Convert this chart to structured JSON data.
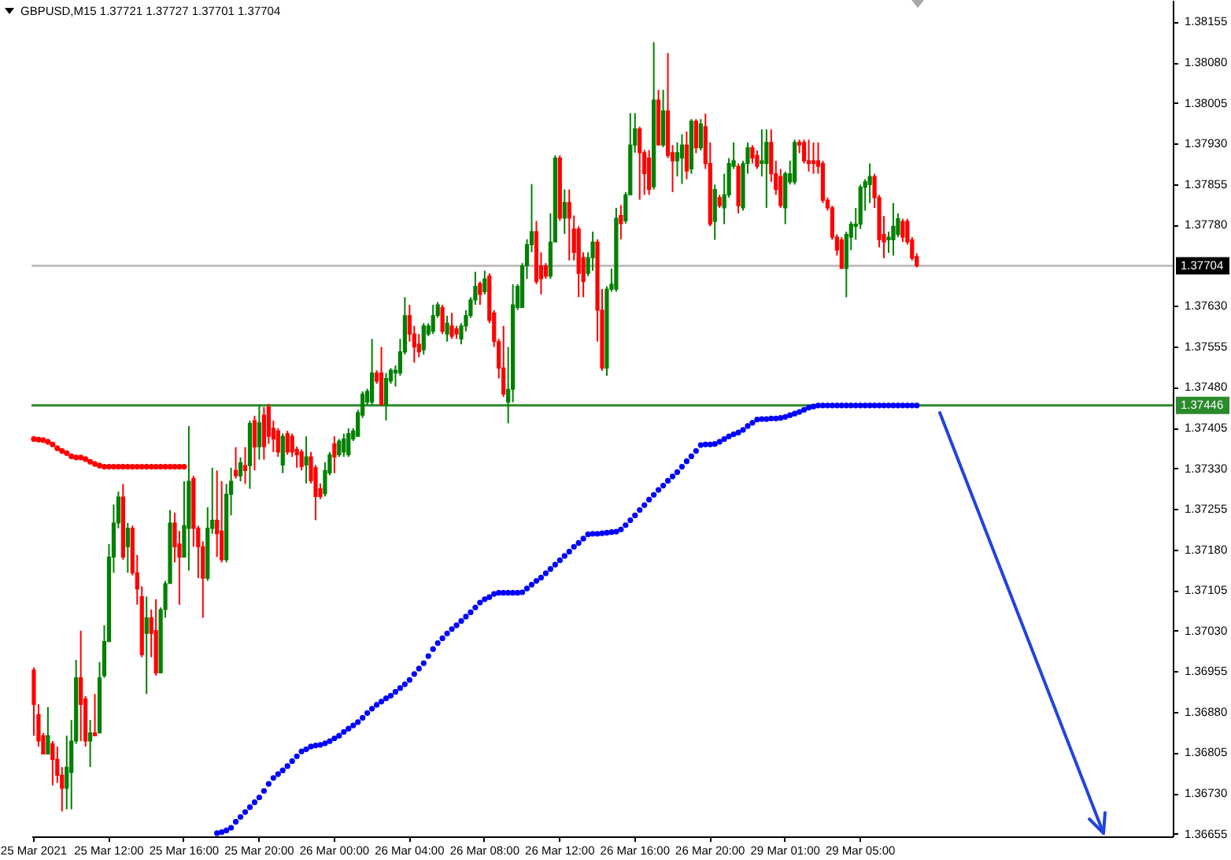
{
  "chart_data": {
    "type": "candlestick",
    "title": "GBPUSD,M15  1.37721 1.37727 1.37701 1.37704",
    "categories": [
      "25 Mar 2021",
      null,
      null,
      null,
      null,
      null,
      null,
      null,
      null,
      null,
      null,
      null,
      null,
      null,
      null,
      null,
      "25 Mar 12:00",
      null,
      null,
      null,
      null,
      null,
      null,
      null,
      null,
      null,
      null,
      null,
      null,
      null,
      null,
      null,
      "25 Mar 16:00",
      null,
      null,
      null,
      null,
      null,
      null,
      null,
      null,
      null,
      null,
      null,
      null,
      null,
      null,
      null,
      "25 Mar 20:00",
      null,
      null,
      null,
      null,
      null,
      null,
      null,
      null,
      null,
      null,
      null,
      null,
      null,
      null,
      null,
      "26 Mar 00:00",
      null,
      null,
      null,
      null,
      null,
      null,
      null,
      null,
      null,
      null,
      null,
      null,
      null,
      null,
      null,
      "26 Mar 04:00",
      null,
      null,
      null,
      null,
      null,
      null,
      null,
      null,
      null,
      null,
      null,
      null,
      null,
      null,
      null,
      "26 Mar 08:00",
      null,
      null,
      null,
      null,
      null,
      null,
      null,
      null,
      null,
      null,
      null,
      null,
      null,
      null,
      null,
      "26 Mar 12:00",
      null,
      null,
      null,
      null,
      null,
      null,
      null,
      null,
      null,
      null,
      null,
      null,
      null,
      null,
      null,
      "26 Mar 16:00",
      null,
      null,
      null,
      null,
      null,
      null,
      null,
      null,
      null,
      null,
      null,
      null,
      null,
      null,
      null,
      "26 Mar 20:00",
      null,
      null,
      null,
      null,
      null,
      null,
      null,
      null,
      null,
      null,
      null,
      null,
      null,
      null,
      null,
      "29 Mar 01:00",
      null,
      null,
      null,
      null,
      null,
      null,
      null,
      null,
      null,
      null,
      null,
      null,
      null,
      null,
      null,
      "29 Mar 05:00",
      null,
      null,
      null,
      null,
      null,
      null,
      null,
      null,
      null,
      null,
      null,
      null,
      null,
      null,
      null,
      null,
      null,
      null,
      null,
      null,
      null,
      null,
      null,
      null,
      null,
      null,
      null,
      null,
      null,
      null,
      null,
      null,
      null,
      null,
      null,
      null,
      null,
      null,
      null,
      null,
      null,
      null,
      null,
      null,
      null,
      null,
      null,
      null,
      null,
      null,
      null,
      null,
      null,
      null,
      null,
      null,
      null,
      null,
      null,
      null,
      null,
      null,
      null,
      null,
      null,
      null
    ],
    "ohlc": [
      [
        1.36957,
        1.36962,
        1.36836,
        1.36894
      ],
      [
        1.36875,
        1.36894,
        1.36816,
        1.36826
      ],
      [
        1.36836,
        1.36841,
        1.36802,
        1.36802
      ],
      [
        1.36802,
        1.36889,
        1.36802,
        1.36836
      ],
      [
        1.36821,
        1.36826,
        1.36744,
        1.36792
      ],
      [
        1.36792,
        1.36816,
        1.36749,
        1.36763
      ],
      [
        1.36763,
        1.36778,
        1.36696,
        1.36739
      ],
      [
        1.36739,
        1.36836,
        1.367,
        1.36778
      ],
      [
        1.36768,
        1.36865,
        1.367,
        1.36826
      ],
      [
        1.36826,
        1.36976,
        1.36821,
        1.36943
      ],
      [
        1.36943,
        1.3703,
        1.36826,
        1.36894
      ],
      [
        1.36904,
        1.36909,
        1.36816,
        1.36826
      ],
      [
        1.36826,
        1.36865,
        1.36778,
        1.36841
      ],
      [
        1.36841,
        1.36913,
        1.36836,
        1.36836
      ],
      [
        1.36841,
        1.36972,
        1.36841,
        1.36943
      ],
      [
        1.36947,
        1.3704,
        1.36943,
        1.3701
      ],
      [
        1.3701,
        1.3719,
        1.3701,
        1.37166
      ],
      [
        1.37166,
        1.37263,
        1.37137,
        1.37229
      ],
      [
        1.37229,
        1.37287,
        1.37219,
        1.37277
      ],
      [
        1.37277,
        1.37301,
        1.37161,
        1.37166
      ],
      [
        1.37185,
        1.37229,
        1.37137,
        1.37219
      ],
      [
        1.37219,
        1.37224,
        1.37132,
        1.37137
      ],
      [
        1.37137,
        1.3717,
        1.37078,
        1.37107
      ],
      [
        1.37093,
        1.37112,
        1.36981,
        1.36986
      ],
      [
        1.37025,
        1.37093,
        1.36913,
        1.37054
      ],
      [
        1.37054,
        1.37069,
        1.36981,
        1.37025
      ],
      [
        1.3703,
        1.37088,
        1.36947,
        1.36952
      ],
      [
        1.36952,
        1.37073,
        1.36952,
        1.37069
      ],
      [
        1.37069,
        1.37122,
        1.37054,
        1.37117
      ],
      [
        1.37117,
        1.37253,
        1.37117,
        1.37229
      ],
      [
        1.37229,
        1.37248,
        1.37156,
        1.37185
      ],
      [
        1.3719,
        1.37214,
        1.37078,
        1.37166
      ],
      [
        1.37166,
        1.37306,
        1.37166,
        1.37224
      ],
      [
        1.37219,
        1.37408,
        1.37141,
        1.37306
      ],
      [
        1.37311,
        1.37316,
        1.37185,
        1.37219
      ],
      [
        1.37219,
        1.37224,
        1.37127,
        1.37185
      ],
      [
        1.37185,
        1.37195,
        1.37054,
        1.37127
      ],
      [
        1.37127,
        1.37258,
        1.37122,
        1.37219
      ],
      [
        1.37219,
        1.37331,
        1.37209,
        1.37234
      ],
      [
        1.37234,
        1.37326,
        1.37166,
        1.37209
      ],
      [
        1.37214,
        1.37306,
        1.37156,
        1.37161
      ],
      [
        1.37161,
        1.37301,
        1.37156,
        1.37282
      ],
      [
        1.37282,
        1.37331,
        1.37243,
        1.37306
      ],
      [
        1.37326,
        1.37369,
        1.37311,
        1.37316
      ],
      [
        1.37316,
        1.3735,
        1.37306,
        1.3734
      ],
      [
        1.37335,
        1.37369,
        1.37301,
        1.37326
      ],
      [
        1.37335,
        1.37418,
        1.37292,
        1.37413
      ],
      [
        1.37418,
        1.37427,
        1.37326,
        1.37369
      ],
      [
        1.3737,
        1.37447,
        1.37346,
        1.37414
      ],
      [
        1.37428,
        1.37443,
        1.37346,
        1.3737
      ],
      [
        1.37443,
        1.37449,
        1.37375,
        1.37389
      ],
      [
        1.37404,
        1.37418,
        1.3736,
        1.37384
      ],
      [
        1.37399,
        1.37404,
        1.37351,
        1.3736
      ],
      [
        1.37336,
        1.37394,
        1.37321,
        1.37389
      ],
      [
        1.37394,
        1.37399,
        1.37355,
        1.3736
      ],
      [
        1.37389,
        1.37394,
        1.37351,
        1.3736
      ],
      [
        1.37365,
        1.3737,
        1.37331,
        1.37355
      ],
      [
        1.3736,
        1.37365,
        1.37326,
        1.37333
      ],
      [
        1.37336,
        1.37389,
        1.37302,
        1.37351
      ],
      [
        1.37351,
        1.3736,
        1.37302,
        1.37307
      ],
      [
        1.37331,
        1.37336,
        1.37234,
        1.37278
      ],
      [
        1.37292,
        1.37302,
        1.37273,
        1.37278
      ],
      [
        1.37283,
        1.37341,
        1.37278,
        1.37326
      ],
      [
        1.37321,
        1.3736,
        1.37317,
        1.37355
      ],
      [
        1.37375,
        1.37389,
        1.37321,
        1.37351
      ],
      [
        1.37355,
        1.37384,
        1.37351,
        1.3738
      ],
      [
        1.3736,
        1.37394,
        1.37351,
        1.37384
      ],
      [
        1.37355,
        1.37404,
        1.37351,
        1.37394
      ],
      [
        1.37384,
        1.37404,
        1.3738,
        1.37399
      ],
      [
        1.37389,
        1.37438,
        1.37389,
        1.37433
      ],
      [
        1.37428,
        1.37472,
        1.37423,
        1.37467
      ],
      [
        1.37452,
        1.37477,
        1.37447,
        1.37472
      ],
      [
        1.37452,
        1.37569,
        1.37447,
        1.37506
      ],
      [
        1.37506,
        1.37511,
        1.37486,
        1.37491
      ],
      [
        1.37506,
        1.37554,
        1.37447,
        1.37447
      ],
      [
        1.37447,
        1.37506,
        1.37418,
        1.37496
      ],
      [
        1.37491,
        1.37515,
        1.37486,
        1.37511
      ],
      [
        1.37506,
        1.3752,
        1.37481,
        1.37511
      ],
      [
        1.37506,
        1.37569,
        1.37501,
        1.37545
      ],
      [
        1.37545,
        1.37646,
        1.3754,
        1.37612
      ],
      [
        1.37612,
        1.37632,
        1.37564,
        1.37578
      ],
      [
        1.37578,
        1.37593,
        1.37525,
        1.37554
      ],
      [
        1.37559,
        1.37578,
        1.37535,
        1.37545
      ],
      [
        1.37549,
        1.37598,
        1.3754,
        1.37593
      ],
      [
        1.37578,
        1.37598,
        1.37574,
        1.37593
      ],
      [
        1.37583,
        1.37632,
        1.37578,
        1.37612
      ],
      [
        1.37612,
        1.37637,
        1.37608,
        1.37632
      ],
      [
        1.37627,
        1.37632,
        1.37578,
        1.37583
      ],
      [
        1.37578,
        1.37612,
        1.37564,
        1.37598
      ],
      [
        1.37593,
        1.37617,
        1.37569,
        1.37574
      ],
      [
        1.37588,
        1.37593,
        1.37569,
        1.37578
      ],
      [
        1.37569,
        1.37598,
        1.37559,
        1.37593
      ],
      [
        1.37593,
        1.37622,
        1.37583,
        1.37612
      ],
      [
        1.37612,
        1.37646,
        1.37608,
        1.37641
      ],
      [
        1.37641,
        1.37693,
        1.37632,
        1.37666
      ],
      [
        1.37671,
        1.37675,
        1.37632,
        1.37651
      ],
      [
        1.37656,
        1.37695,
        1.37651,
        1.3768
      ],
      [
        1.37685,
        1.3769,
        1.37598,
        1.37603
      ],
      [
        1.37617,
        1.37622,
        1.37554,
        1.37564
      ],
      [
        1.37564,
        1.37569,
        1.37496,
        1.37515
      ],
      [
        1.37515,
        1.37593,
        1.37462,
        1.37467
      ],
      [
        1.37452,
        1.37554,
        1.37413,
        1.37476
      ],
      [
        1.37476,
        1.3767,
        1.37452,
        1.37632
      ],
      [
        1.37627,
        1.3767,
        1.37622,
        1.37666
      ],
      [
        1.37627,
        1.37709,
        1.37627,
        1.37704
      ],
      [
        1.37704,
        1.37753,
        1.3768,
        1.37743
      ],
      [
        1.37743,
        1.37855,
        1.37729,
        1.37767
      ],
      [
        1.37767,
        1.37787,
        1.3767,
        1.37675
      ],
      [
        1.37704,
        1.37729,
        1.37651,
        1.3768
      ],
      [
        1.37704,
        1.37709,
        1.3768,
        1.37685
      ],
      [
        1.37685,
        1.37801,
        1.3768,
        1.37748
      ],
      [
        1.37748,
        1.37908,
        1.37748,
        1.37903
      ],
      [
        1.37903,
        1.37908,
        1.37787,
        1.37792
      ],
      [
        1.37792,
        1.37845,
        1.37763,
        1.37821
      ],
      [
        1.37821,
        1.37845,
        1.37714,
        1.37792
      ],
      [
        1.37772,
        1.37797,
        1.37714,
        1.37729
      ],
      [
        1.37772,
        1.37777,
        1.37646,
        1.3769
      ],
      [
        1.37719,
        1.37729,
        1.37646,
        1.37675
      ],
      [
        1.3769,
        1.37729,
        1.37685,
        1.37719
      ],
      [
        1.37719,
        1.37767,
        1.37695,
        1.37748
      ],
      [
        1.37748,
        1.37753,
        1.37564,
        1.37622
      ],
      [
        1.37622,
        1.37661,
        1.3751,
        1.37515
      ],
      [
        1.37515,
        1.37666,
        1.37501,
        1.37661
      ],
      [
        1.37661,
        1.37699,
        1.37656,
        1.3767
      ],
      [
        1.37661,
        1.37811,
        1.37656,
        1.37792
      ],
      [
        1.37797,
        1.37816,
        1.37753,
        1.37782
      ],
      [
        1.37787,
        1.3784,
        1.37782,
        1.37835
      ],
      [
        1.37835,
        1.37986,
        1.37835,
        1.37927
      ],
      [
        1.37927,
        1.37986,
        1.37913,
        1.37957
      ],
      [
        1.37957,
        1.37961,
        1.37826,
        1.37913
      ],
      [
        1.37913,
        1.37918,
        1.37835,
        1.37874
      ],
      [
        1.37903,
        1.37918,
        1.37835,
        1.37845
      ],
      [
        1.3785,
        1.38117,
        1.37845,
        1.3801
      ],
      [
        1.3801,
        1.38029,
        1.37927,
        1.37927
      ],
      [
        1.37927,
        1.38029,
        1.37923,
        1.3799
      ],
      [
        1.3799,
        1.38097,
        1.37903,
        1.37908
      ],
      [
        1.37913,
        1.37927,
        1.3784,
        1.37898
      ],
      [
        1.37898,
        1.37932,
        1.37869,
        1.37913
      ],
      [
        1.37903,
        1.37947,
        1.37855,
        1.37927
      ],
      [
        1.37927,
        1.37952,
        1.37864,
        1.37879
      ],
      [
        1.37883,
        1.37975,
        1.37874,
        1.37971
      ],
      [
        1.37971,
        1.37975,
        1.37912,
        1.37922
      ],
      [
        1.37922,
        1.37975,
        1.37917,
        1.37966
      ],
      [
        1.37961,
        1.37985,
        1.37883,
        1.37893
      ],
      [
        1.37893,
        1.37932,
        1.37777,
        1.37781
      ],
      [
        1.37786,
        1.37854,
        1.37752,
        1.37845
      ],
      [
        1.3783,
        1.37835,
        1.37811,
        1.37815
      ],
      [
        1.37811,
        1.37874,
        1.37781,
        1.37835
      ],
      [
        1.37835,
        1.37903,
        1.3783,
        1.37893
      ],
      [
        1.37888,
        1.37932,
        1.37883,
        1.37898
      ],
      [
        1.37888,
        1.37893,
        1.37801,
        1.37815
      ],
      [
        1.37811,
        1.37898,
        1.37806,
        1.37893
      ],
      [
        1.37893,
        1.37932,
        1.37874,
        1.37922
      ],
      [
        1.37922,
        1.37927,
        1.37893,
        1.37903
      ],
      [
        1.37908,
        1.37917,
        1.37883,
        1.37888
      ],
      [
        1.37893,
        1.37956,
        1.37869,
        1.37898
      ],
      [
        1.37893,
        1.37956,
        1.37811,
        1.37932
      ],
      [
        1.37932,
        1.37956,
        1.37859,
        1.37874
      ],
      [
        1.37874,
        1.37898,
        1.37835,
        1.37845
      ],
      [
        1.37869,
        1.37883,
        1.37811,
        1.37815
      ],
      [
        1.37811,
        1.37878,
        1.37781,
        1.37874
      ],
      [
        1.37859,
        1.37898,
        1.37854,
        1.37874
      ],
      [
        1.37859,
        1.37937,
        1.37854,
        1.37932
      ],
      [
        1.37932,
        1.37937,
        1.37912,
        1.37927
      ],
      [
        1.37932,
        1.37937,
        1.37893,
        1.37898
      ],
      [
        1.37898,
        1.37937,
        1.37878,
        1.37893
      ],
      [
        1.37898,
        1.37932,
        1.37874,
        1.37893
      ],
      [
        1.37898,
        1.37932,
        1.37874,
        1.37888
      ],
      [
        1.37893,
        1.37898,
        1.3782,
        1.37825
      ],
      [
        1.37825,
        1.3783,
        1.37806,
        1.37811
      ],
      [
        1.37811,
        1.37815,
        1.37752,
        1.37757
      ],
      [
        1.37757,
        1.37762,
        1.37723,
        1.37733
      ],
      [
        1.37752,
        1.37757,
        1.37699,
        1.37699
      ],
      [
        1.37699,
        1.37767,
        1.37646,
        1.37762
      ],
      [
        1.37757,
        1.37786,
        1.37733,
        1.37781
      ],
      [
        1.37777,
        1.37811,
        1.37752,
        1.37781
      ],
      [
        1.37781,
        1.37854,
        1.37772,
        1.37849
      ],
      [
        1.37849,
        1.37864,
        1.37806,
        1.37859
      ],
      [
        1.37854,
        1.37893,
        1.3782,
        1.37869
      ],
      [
        1.37869,
        1.37874,
        1.37811,
        1.3783
      ],
      [
        1.3783,
        1.37835,
        1.37738,
        1.37752
      ],
      [
        1.37762,
        1.37796,
        1.37718,
        1.37748
      ],
      [
        1.37752,
        1.37767,
        1.37728,
        1.37757
      ],
      [
        1.37752,
        1.3782,
        1.37723,
        1.37777
      ],
      [
        1.37762,
        1.37801,
        1.37757,
        1.37791
      ],
      [
        1.37786,
        1.37791,
        1.37748,
        1.37757
      ],
      [
        1.37786,
        1.37791,
        1.37743,
        1.37748
      ],
      [
        1.37752,
        1.37757,
        1.37714,
        1.37718
      ],
      [
        1.37721,
        1.37727,
        1.37701,
        1.37704
      ],
      null,
      null,
      null,
      null,
      null,
      null,
      null,
      null,
      null,
      null,
      null,
      null,
      null,
      null,
      null,
      null,
      null,
      null,
      null,
      null,
      null,
      null,
      null,
      null,
      null,
      null,
      null,
      null,
      null,
      null,
      null,
      null,
      null,
      null,
      null,
      null,
      null,
      null,
      null,
      null,
      null,
      null,
      null,
      null,
      null,
      null,
      null,
      null,
      null,
      null,
      null,
      null,
      null,
      null
    ],
    "series": [
      {
        "type": "scatter",
        "color": "#ff0000",
        "values": [
          1.37384,
          1.37383,
          1.37382,
          1.37379,
          1.37374,
          1.37367,
          1.37362,
          1.37358,
          1.37352,
          1.3735,
          1.3735,
          1.37347,
          1.37342,
          1.37338,
          1.37335,
          1.37333,
          1.37333,
          1.37333,
          1.37333,
          1.37333,
          1.37333,
          1.37333,
          1.37333,
          1.37333,
          1.37333,
          1.37333,
          1.37333,
          1.37333,
          1.37333,
          1.37333,
          1.37333,
          1.37333,
          1.37333,
          null,
          null,
          null,
          null,
          null,
          null,
          null,
          null,
          null,
          null,
          null,
          null,
          null,
          null,
          null,
          null,
          null,
          null,
          null,
          null,
          null,
          null,
          null,
          null,
          null,
          null,
          null,
          null,
          null,
          null,
          null,
          null,
          null,
          null,
          null,
          null,
          null,
          null,
          null,
          null,
          null,
          null,
          null,
          null,
          null,
          null,
          null,
          null,
          null,
          null,
          null,
          null,
          null,
          null,
          null,
          null,
          null,
          null,
          null,
          null,
          null,
          null,
          null,
          null,
          null,
          null,
          null,
          null,
          null,
          null,
          null,
          null,
          null,
          null,
          null,
          null,
          null,
          null,
          null,
          null,
          null,
          null,
          null,
          null,
          null,
          null,
          null,
          null,
          null,
          null,
          null,
          null,
          null,
          null,
          null,
          null,
          null,
          null,
          null,
          null,
          null,
          null,
          null,
          null,
          null,
          null,
          null,
          null,
          null,
          null,
          null,
          null,
          null,
          null,
          null,
          null,
          null,
          null,
          null,
          null,
          null,
          null,
          null,
          null,
          null,
          null,
          null,
          null,
          null,
          null,
          null,
          null,
          null,
          null,
          null,
          null,
          null,
          null,
          null,
          null,
          null,
          null,
          null,
          null,
          null,
          null,
          null,
          null,
          null,
          null,
          null,
          null,
          null,
          null,
          null,
          null,
          null,
          null,
          null,
          null,
          null,
          null,
          null,
          null,
          null,
          null,
          null,
          null,
          null,
          null,
          null,
          null,
          null,
          null,
          null,
          null,
          null,
          null,
          null,
          null,
          null,
          null,
          null,
          null,
          null,
          null,
          null,
          null,
          null,
          null,
          null,
          null,
          null,
          null,
          null,
          null,
          null,
          null,
          null,
          null,
          null,
          null,
          null,
          null,
          null,
          null,
          null,
          null,
          null,
          null
        ]
      },
      {
        "type": "scatter",
        "color": "#0000ff",
        "values": [
          null,
          null,
          null,
          null,
          null,
          null,
          null,
          null,
          null,
          null,
          null,
          null,
          null,
          null,
          null,
          null,
          null,
          null,
          null,
          null,
          null,
          null,
          null,
          null,
          null,
          null,
          null,
          null,
          null,
          null,
          null,
          null,
          null,
          null,
          null,
          null,
          null,
          null,
          null,
          1.36656,
          1.36658,
          1.36661,
          1.36666,
          1.36677,
          1.36686,
          1.36695,
          1.36704,
          1.36713,
          1.36722,
          1.36734,
          1.36747,
          1.36758,
          1.36765,
          1.36772,
          1.3678,
          1.36789,
          1.36798,
          1.36807,
          1.36811,
          1.36816,
          1.36818,
          1.36819,
          1.36822,
          1.36826,
          1.36831,
          1.36836,
          1.36843,
          1.36849,
          1.36855,
          1.36861,
          1.36869,
          1.36878,
          1.36886,
          1.36893,
          1.36899,
          1.36905,
          1.3691,
          1.36917,
          1.36924,
          1.36931,
          1.36939,
          1.3695,
          1.3696,
          1.3697,
          1.36983,
          1.36996,
          1.37007,
          1.37016,
          1.37025,
          1.37033,
          1.3704,
          1.37048,
          1.37056,
          1.37064,
          1.37073,
          1.37082,
          1.37088,
          1.37092,
          1.37098,
          1.371,
          1.371,
          1.371,
          1.371,
          1.371,
          1.37101,
          1.37108,
          1.37115,
          1.37122,
          1.37128,
          1.37136,
          1.37144,
          1.37152,
          1.3716,
          1.37168,
          1.37176,
          1.37185,
          1.37192,
          1.372,
          1.37208,
          1.37209,
          1.37209,
          1.3721,
          1.37211,
          1.37212,
          1.37213,
          1.37217,
          1.37225,
          1.37234,
          1.37243,
          1.37253,
          1.37262,
          1.37272,
          1.37281,
          1.3729,
          1.37298,
          1.37307,
          1.37315,
          1.37323,
          1.37333,
          1.37343,
          1.37352,
          1.37362,
          1.37373,
          1.37374,
          1.37374,
          1.37375,
          1.37379,
          1.37384,
          1.37389,
          1.37393,
          1.37396,
          1.37401,
          1.37408,
          1.37414,
          1.3742,
          1.37421,
          1.37421,
          1.37422,
          1.37422,
          1.37423,
          1.37425,
          1.37428,
          1.37431,
          1.37434,
          1.37438,
          1.37442,
          1.37444,
          1.37446,
          1.37446,
          1.37446,
          1.37446,
          1.37446,
          1.37446,
          1.37446,
          1.37446,
          1.37446,
          1.37446,
          1.37446,
          1.37446,
          1.37446,
          1.37446,
          1.37446,
          1.37446,
          1.37446,
          1.37446,
          1.37446,
          1.37446,
          1.37446,
          1.37446,
          null,
          null,
          null,
          null,
          null,
          null,
          null,
          null,
          null,
          null,
          null,
          null,
          null,
          null,
          null,
          null,
          null,
          null,
          null,
          null,
          null,
          null,
          null,
          null,
          null,
          null,
          null,
          null,
          null,
          null,
          null,
          null,
          null,
          null,
          null,
          null,
          null,
          null,
          null,
          null,
          null,
          null,
          null,
          null,
          null,
          null,
          null,
          null,
          null,
          null,
          null,
          null,
          null,
          null
        ]
      }
    ],
    "marker": "circle",
    "ylim": [
      1.3665,
      1.38195
    ],
    "yticks": [
      1.38155,
      {
        "value": 1.3808,
        "label": "1.38080"
      },
      1.38005,
      {
        "value": 1.3793,
        "label": "1.37930"
      },
      1.37855,
      {
        "value": 1.3778,
        "label": "1.37780"
      },
      {
        "value": 1.3763,
        "label": "1.37630"
      },
      1.37555,
      {
        "value": 1.3748,
        "label": "1.37480"
      },
      1.37405,
      {
        "value": 1.3733,
        "label": "1.37330"
      },
      1.37255,
      {
        "value": 1.3718,
        "label": "1.37180"
      },
      1.37105,
      {
        "value": 1.3703,
        "label": "1.37030"
      },
      1.36955,
      {
        "value": 1.3688,
        "label": "1.36880"
      },
      1.36805,
      {
        "value": 1.3673,
        "label": "1.36730"
      },
      1.36655
    ],
    "ref_lines": [
      {
        "axis": "y",
        "value": 1.37704,
        "label": "1.37704",
        "color": "#c0c0c0"
      },
      {
        "axis": "y",
        "value": 1.37446,
        "label": "1.37446",
        "color": "#2b8a2b"
      }
    ]
  }
}
